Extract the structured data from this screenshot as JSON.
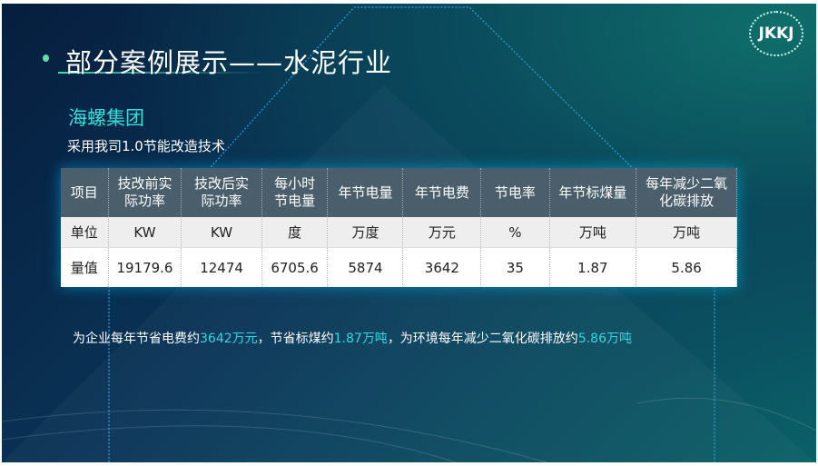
{
  "title": "部分案例展示——水泥行业",
  "logo_text": "JKKJ",
  "company": "海螺集团",
  "subtitle": "采用我司1.0节能改造技术",
  "table": {
    "headers": [
      "项目",
      "技改前实\n际功率",
      "技改后实\n际功率",
      "每小时\n节电量",
      "年节电量",
      "年节电费",
      "节电率",
      "年节标煤量",
      "每年减少二氧\n化碳排放"
    ],
    "rows": [
      [
        "单位",
        "KW",
        "KW",
        "度",
        "万度",
        "万元",
        "%",
        "万吨",
        "万吨"
      ],
      [
        "量值",
        "19179.6",
        "12474",
        "6705.6",
        "5874",
        "3642",
        "35",
        "1.87",
        "5.86"
      ]
    ]
  },
  "summary": {
    "p1": "为企业每年节省电费约",
    "v1": "3642万元",
    "p2": "，节省标煤约",
    "v2": "1.87万吨",
    "p3": "，为环境每年减少二氧化碳排放约",
    "v3": "5.86万吨"
  },
  "colors": {
    "accent": "#2fe0d8",
    "header_bg": "#4a5f6b"
  }
}
